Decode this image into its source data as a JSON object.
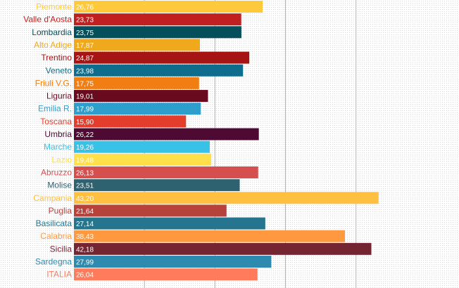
{
  "chart_data": {
    "type": "bar",
    "orientation": "horizontal",
    "categories": [
      "Piemonte",
      "Valle d'Aosta",
      "Lombardia",
      "Alto Adige",
      "Trentino",
      "Veneto",
      "Friuli V.G.",
      "Liguria",
      "Emilia R.",
      "Toscana",
      "Umbria",
      "Marche",
      "Lazio",
      "Abruzzo",
      "Molise",
      "Campania",
      "Puglia",
      "Basilicata",
      "Calabria",
      "Sicilia",
      "Sardegna",
      "ITALIA"
    ],
    "values": [
      26.76,
      23.73,
      23.75,
      17.87,
      24.87,
      23.98,
      17.75,
      19.01,
      17.99,
      15.9,
      26.22,
      19.26,
      19.48,
      26.13,
      23.51,
      43.2,
      21.64,
      27.14,
      38.43,
      42.18,
      27.99,
      26.04
    ],
    "value_labels": [
      "26,76",
      "23,73",
      "23,75",
      "17,87",
      "24,87",
      "23,98",
      "17,75",
      "19,01",
      "17,99",
      "15,90",
      "26,22",
      "19,26",
      "19,48",
      "26,13",
      "23,51",
      "43,20",
      "21,64",
      "27,14",
      "38,43",
      "42,18",
      "27,99",
      "26,04"
    ],
    "colors": [
      "#FFC93C",
      "#C0201F",
      "#034F5A",
      "#F0A81D",
      "#A71414",
      "#0E6C8C",
      "#F07E13",
      "#6A0A1E",
      "#2E9FCC",
      "#E43D2B",
      "#4E0A33",
      "#39C2E8",
      "#FFDF4A",
      "#D64F4F",
      "#2F6270",
      "#FFC042",
      "#B6423B",
      "#25758F",
      "#FF9940",
      "#742531",
      "#2E8AAF",
      "#FF7B5C"
    ],
    "xlim": [
      0,
      50
    ],
    "gridlines": [
      10,
      20,
      30,
      40
    ],
    "grid": true,
    "title": "",
    "xlabel": "",
    "ylabel": ""
  }
}
